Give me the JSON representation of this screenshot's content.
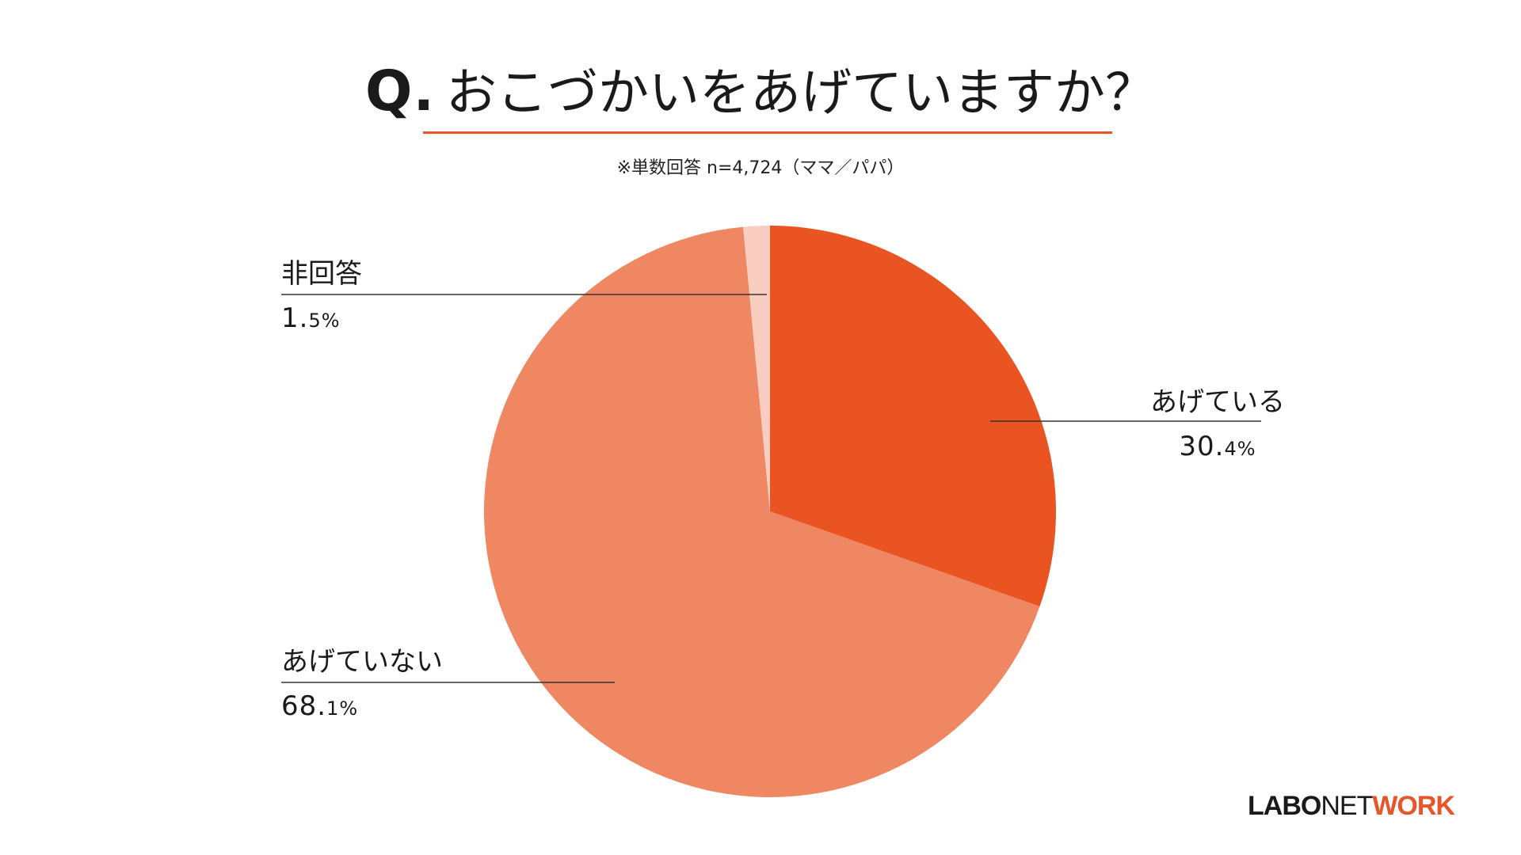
{
  "colors": {
    "accent": "#E8552A",
    "slice_yes": "#E95422",
    "slice_no": "#F08763",
    "slice_na": "#F9CEC0",
    "leader": "#333333"
  },
  "header": {
    "q_mark": "Q.",
    "question": "おこづかいをあげていますか？",
    "note": "※単数回答 n=4,724（ママ／パパ）"
  },
  "chart_data": {
    "type": "pie",
    "title": "Q. おこづかいをあげていますか？",
    "subtitle": "※単数回答 n=4,724（ママ／パパ）",
    "slices": [
      {
        "label": "あげている",
        "value": 30.4,
        "pct_main": "30.",
        "pct_small": "4%"
      },
      {
        "label": "あげていない",
        "value": 68.1,
        "pct_main": "68.",
        "pct_small": "1%"
      },
      {
        "label": "非回答",
        "value": 1.5,
        "pct_main": "1.",
        "pct_small": "5%"
      }
    ],
    "start_angle": "12 o'clock",
    "direction": "clockwise"
  },
  "brand": {
    "part1": "LABO",
    "part2": "NET",
    "part3": "WORK"
  }
}
